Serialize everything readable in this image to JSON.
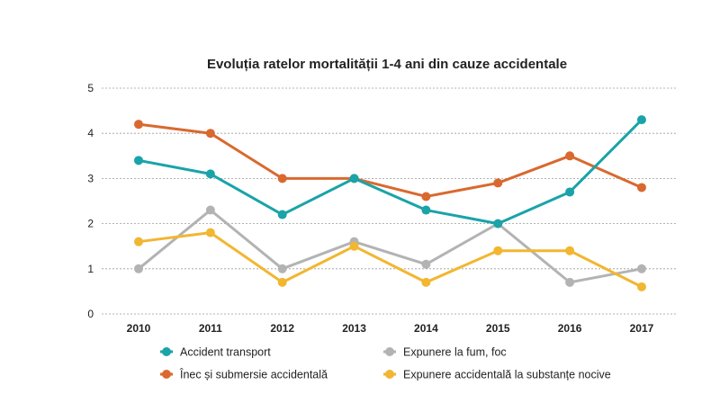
{
  "chart_data": {
    "type": "line",
    "title": "Evoluția ratelor mortalității 1-4 ani din cauze accidentale",
    "xlabel": "",
    "ylabel": "",
    "categories": [
      "2010",
      "2011",
      "2012",
      "2013",
      "2014",
      "2015",
      "2016",
      "2017"
    ],
    "ylim": [
      0,
      5
    ],
    "yticks": [
      "0",
      "1",
      "2",
      "3",
      "4",
      "5"
    ],
    "grid": true,
    "legend_position": "bottom",
    "series": [
      {
        "name": "Accident transport",
        "color": "#1aa3a8",
        "values": [
          3.4,
          3.1,
          2.2,
          3.0,
          2.3,
          2.0,
          2.7,
          4.3
        ]
      },
      {
        "name": "Expunere la fum, foc",
        "color": "#b3b3b3",
        "values": [
          1.0,
          2.3,
          1.0,
          1.6,
          1.1,
          2.0,
          0.7,
          1.0
        ]
      },
      {
        "name": "Înec și submersie accidentală",
        "color": "#d9692f",
        "values": [
          4.2,
          4.0,
          3.0,
          3.0,
          2.6,
          2.9,
          3.5,
          2.8
        ]
      },
      {
        "name": "Expunere accidentală la substanțe nocive",
        "color": "#f2b630",
        "values": [
          1.6,
          1.8,
          0.7,
          1.5,
          0.7,
          1.4,
          1.4,
          0.6
        ]
      }
    ]
  }
}
